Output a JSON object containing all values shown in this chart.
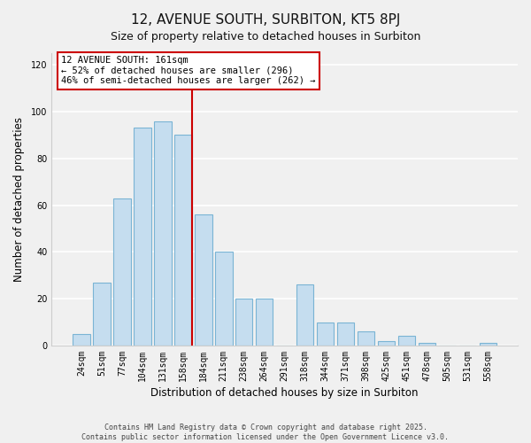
{
  "title": "12, AVENUE SOUTH, SURBITON, KT5 8PJ",
  "subtitle": "Size of property relative to detached houses in Surbiton",
  "xlabel": "Distribution of detached houses by size in Surbiton",
  "ylabel": "Number of detached properties",
  "categories": [
    "24sqm",
    "51sqm",
    "77sqm",
    "104sqm",
    "131sqm",
    "158sqm",
    "184sqm",
    "211sqm",
    "238sqm",
    "264sqm",
    "291sqm",
    "318sqm",
    "344sqm",
    "371sqm",
    "398sqm",
    "425sqm",
    "451sqm",
    "478sqm",
    "505sqm",
    "531sqm",
    "558sqm"
  ],
  "values": [
    5,
    27,
    63,
    93,
    96,
    90,
    56,
    40,
    20,
    20,
    0,
    26,
    10,
    10,
    6,
    2,
    4,
    1,
    0,
    0,
    1
  ],
  "bar_color": "#c5ddef",
  "bar_edge_color": "#7ab4d4",
  "highlight_index": 5,
  "highlight_line_color": "#cc0000",
  "ylim": [
    0,
    125
  ],
  "yticks": [
    0,
    20,
    40,
    60,
    80,
    100,
    120
  ],
  "annotation_title": "12 AVENUE SOUTH: 161sqm",
  "annotation_line1": "← 52% of detached houses are smaller (296)",
  "annotation_line2": "46% of semi-detached houses are larger (262) →",
  "annotation_box_color": "#ffffff",
  "annotation_box_edge": "#cc0000",
  "footer1": "Contains HM Land Registry data © Crown copyright and database right 2025.",
  "footer2": "Contains public sector information licensed under the Open Government Licence v3.0.",
  "background_color": "#f0f0f0",
  "plot_bg_color": "#f0f0f0",
  "grid_color": "#ffffff",
  "title_fontsize": 11,
  "subtitle_fontsize": 9,
  "tick_fontsize": 7,
  "label_fontsize": 8.5,
  "annotation_fontsize": 7.5,
  "footer_fontsize": 6
}
